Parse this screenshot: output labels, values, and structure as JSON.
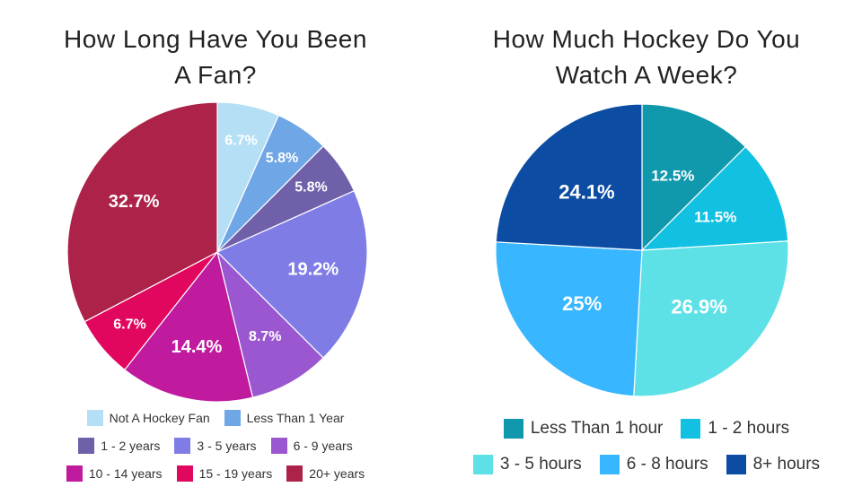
{
  "chart_data": [
    {
      "type": "pie",
      "title": "How Long Have You Been A Fan?",
      "title_lines": [
        "How Long Have You Been",
        "A Fan?"
      ],
      "start_angle_deg": 0,
      "direction": "clockwise",
      "legend_position": "bottom",
      "slices": [
        {
          "name": "Not A Hockey Fan",
          "value": 6.7,
          "label": "6.7%",
          "color": "#b5dff5"
        },
        {
          "name": "Less Than 1 Year",
          "value": 5.8,
          "label": "5.8%",
          "color": "#6fa6e6"
        },
        {
          "name": "1 - 2 years",
          "value": 5.8,
          "label": "5.8%",
          "color": "#7060aa"
        },
        {
          "name": "3 - 5 years",
          "value": 19.2,
          "label": "19.2%",
          "color": "#7f7ce6"
        },
        {
          "name": "6 - 9 years",
          "value": 8.7,
          "label": "8.7%",
          "color": "#9b57d0"
        },
        {
          "name": "10 - 14 years",
          "value": 14.4,
          "label": "14.4%",
          "color": "#c01a9f"
        },
        {
          "name": "15 - 19 years",
          "value": 6.7,
          "label": "6.7%",
          "color": "#e2075e"
        },
        {
          "name": "20+ years",
          "value": 32.7,
          "label": "32.7%",
          "color": "#ad2249"
        }
      ],
      "legend_rows": [
        [
          0,
          1
        ],
        [
          2,
          3,
          4
        ],
        [
          5,
          6,
          7
        ]
      ]
    },
    {
      "type": "pie",
      "title": "How Much Hockey Do You Watch A Week?",
      "title_lines": [
        "How Much Hockey Do You",
        "Watch A Week?"
      ],
      "start_angle_deg": 0,
      "direction": "clockwise",
      "legend_position": "bottom",
      "slices": [
        {
          "name": "Less Than 1 hour",
          "value": 12.5,
          "label": "12.5%",
          "color": "#1098ad"
        },
        {
          "name": "1 - 2 hours",
          "value": 11.5,
          "label": "11.5%",
          "color": "#12c0e2"
        },
        {
          "name": "3 - 5 hours",
          "value": 26.9,
          "label": "26.9%",
          "color": "#5de1e6"
        },
        {
          "name": "6 - 8 hours",
          "value": 25,
          "label": "25%",
          "color": "#38b6ff"
        },
        {
          "name": "8+ hours",
          "value": 24.1,
          "label": "24.1%",
          "color": "#0c4da3"
        }
      ],
      "legend_rows": [
        [
          0,
          1
        ],
        [
          2,
          3,
          4
        ]
      ]
    }
  ]
}
